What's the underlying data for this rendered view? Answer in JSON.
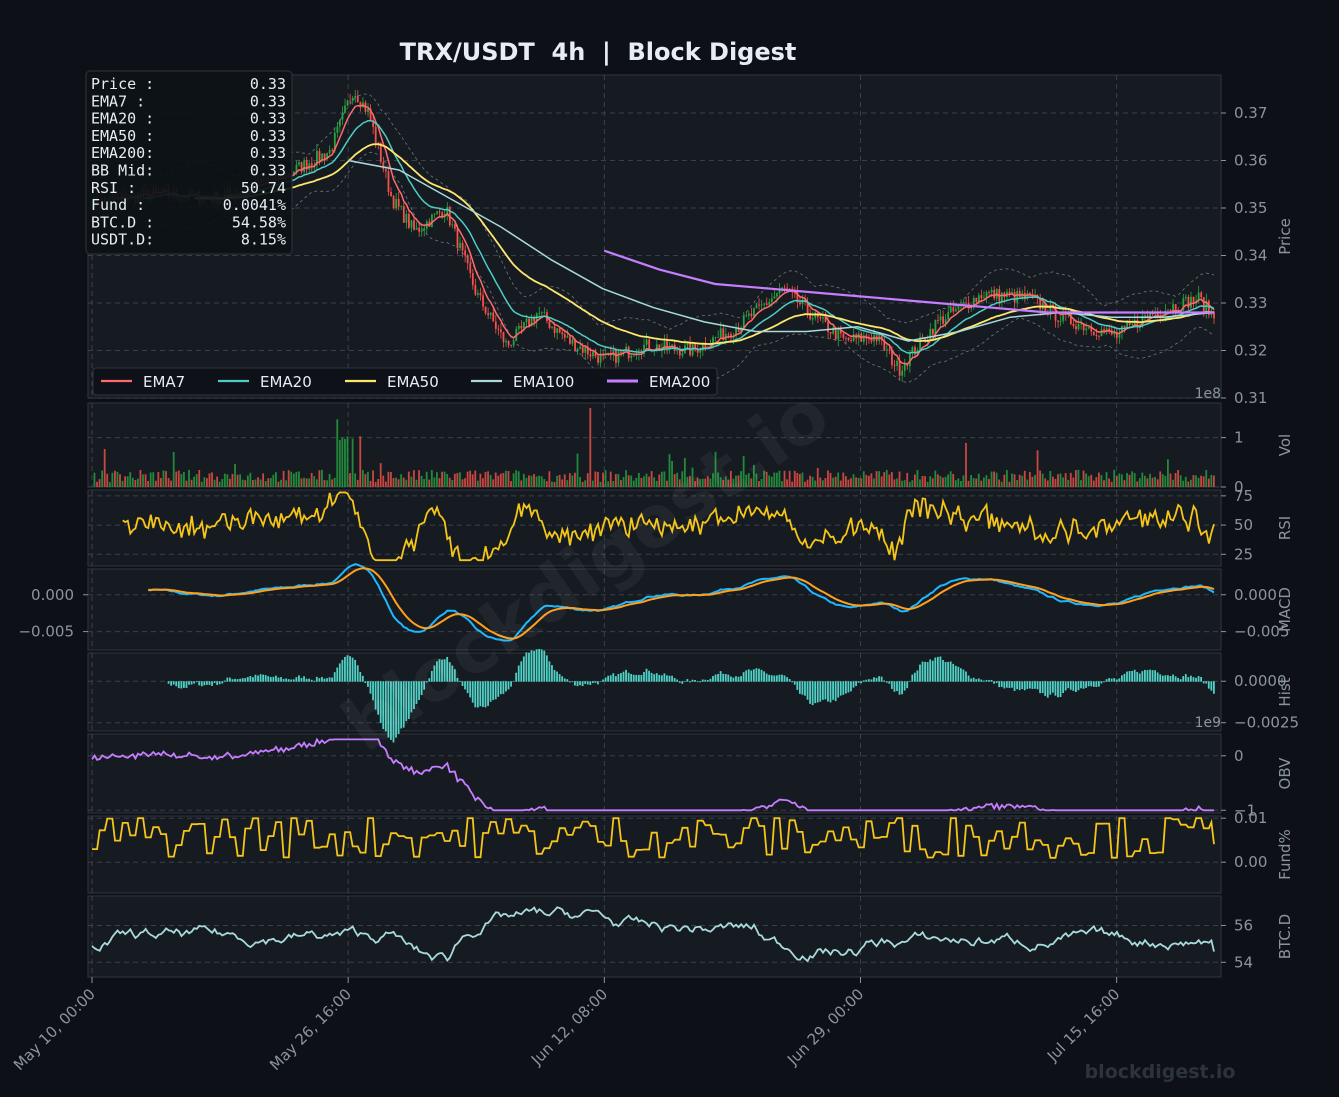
{
  "title": "TRX/USDT  4h  |  Block Digest",
  "watermark": "blockdigest.io",
  "footer_brand": "blockdigest.io",
  "colors": {
    "bg": "#0d1117",
    "panel": "#161b22",
    "grid": "#30363d",
    "text": "#e6edf3",
    "muted": "#8b949e",
    "up": "#26a641",
    "down": "#f85149",
    "ema7": "#ff6b6b",
    "ema20": "#4ecdc4",
    "ema50": "#ffe66d",
    "ema100": "#a8dadc",
    "ema200": "#c77dff",
    "rsi": "#f5c518",
    "macd": "#1fb8ff",
    "signal": "#ff9f1c",
    "hist": "#4fd1c5",
    "obv": "#c77dff",
    "funding": "#f5c518",
    "btcd": "#a8dadc"
  },
  "info_box": [
    {
      "label": "Price :",
      "value": "0.33"
    },
    {
      "label": "EMA7  :",
      "value": "0.33"
    },
    {
      "label": "EMA20 :",
      "value": "0.33"
    },
    {
      "label": "EMA50 :",
      "value": "0.33"
    },
    {
      "label": "EMA200:",
      "value": "0.33"
    },
    {
      "label": "BB Mid:",
      "value": "0.33"
    },
    {
      "label": "RSI   :",
      "value": "50.74"
    },
    {
      "label": "Fund  :",
      "value": "0.0041%"
    },
    {
      "label": "BTC.D :",
      "value": "54.58%"
    },
    {
      "label": "USDT.D:",
      "value": "8.15%"
    }
  ],
  "legend": [
    "EMA7",
    "EMA20",
    "EMA50",
    "EMA100",
    "EMA200"
  ],
  "x_ticks": [
    "May 10, 00:00",
    "May 26, 16:00",
    "Jun 12, 08:00",
    "Jun 29, 00:00",
    "Jul 15, 16:00"
  ],
  "chart_data": [
    {
      "type": "candlestick",
      "panel": "price",
      "ylabel": "Price",
      "ylim": [
        0.31,
        0.378
      ],
      "yticks": [
        "0.37",
        "0.36",
        "0.35",
        "0.34",
        "0.33",
        "0.32",
        "0.31"
      ],
      "xlim": [
        "May 10, 00:00",
        "Jul 22, 00:00"
      ],
      "close_path": [
        [
          "May 10, 00:00",
          0.351
        ],
        [
          "May 14, 00:00",
          0.353
        ],
        [
          "May 18, 00:00",
          0.352
        ],
        [
          "May 22, 00:00",
          0.356
        ],
        [
          "May 25, 12:00",
          0.362
        ],
        [
          "May 27, 00:00",
          0.375
        ],
        [
          "May 28, 00:00",
          0.37
        ],
        [
          "May 29, 12:00",
          0.352
        ],
        [
          "May 31, 00:00",
          0.345
        ],
        [
          "Jun 2, 00:00",
          0.35
        ],
        [
          "Jun 4, 00:00",
          0.332
        ],
        [
          "Jun 6, 00:00",
          0.321
        ],
        [
          "Jun 8, 00:00",
          0.328
        ],
        [
          "Jun 10, 00:00",
          0.322
        ],
        [
          "Jun 12, 08:00",
          0.318
        ],
        [
          "Jun 15, 00:00",
          0.321
        ],
        [
          "Jun 18, 00:00",
          0.32
        ],
        [
          "Jun 21, 00:00",
          0.325
        ],
        [
          "Jun 24, 00:00",
          0.333
        ],
        [
          "Jun 26, 00:00",
          0.327
        ],
        [
          "Jun 28, 00:00",
          0.322
        ],
        [
          "Jun 30, 00:00",
          0.323
        ],
        [
          "Jul 1, 12:00",
          0.316
        ],
        [
          "Jul 4, 00:00",
          0.326
        ],
        [
          "Jul 7, 00:00",
          0.332
        ],
        [
          "Jul 10, 00:00",
          0.331
        ],
        [
          "Jul 12, 00:00",
          0.327
        ],
        [
          "Jul 15, 16:00",
          0.323
        ],
        [
          "Jul 18, 00:00",
          0.328
        ],
        [
          "Jul 21, 00:00",
          0.331
        ],
        [
          "Jul 22, 00:00",
          0.327
        ]
      ],
      "series": [
        {
          "name": "EMA200",
          "start": "Jun 12, 08:00",
          "values": [
            0.341,
            0.337,
            0.334,
            0.333,
            0.332,
            0.331,
            0.33,
            0.329,
            0.328,
            0.328,
            0.328,
            0.328
          ]
        },
        {
          "name": "EMA100",
          "start": "May 26, 16:00",
          "values": [
            0.36,
            0.358,
            0.352,
            0.346,
            0.339,
            0.333,
            0.329,
            0.326,
            0.324,
            0.324,
            0.325,
            0.322,
            0.324,
            0.327,
            0.328,
            0.327,
            0.327,
            0.328
          ]
        }
      ]
    },
    {
      "type": "bar",
      "panel": "volume",
      "ylabel": "Vol",
      "multiplier": "1e8",
      "yticks": [
        "1",
        "0"
      ],
      "ylim": [
        0,
        1.7
      ]
    },
    {
      "type": "line",
      "panel": "rsi",
      "ylabel": "RSI",
      "yticks": [
        "75",
        "50",
        "25"
      ],
      "ylim": [
        15,
        80
      ],
      "last": 50.74
    },
    {
      "type": "line",
      "panel": "macd",
      "ylabel": "MACD",
      "yticks": [
        "0.000",
        "−0.005"
      ],
      "left_yticks": [
        "0.000",
        "−0.005"
      ],
      "ylim": [
        -0.0075,
        0.0035
      ],
      "series": [
        {
          "name": "MACD"
        },
        {
          "name": "Signal"
        }
      ]
    },
    {
      "type": "bar",
      "panel": "hist",
      "ylabel": "Hist",
      "yticks": [
        "0.0000",
        "−0.0025"
      ],
      "ylim": [
        -0.003,
        0.0017
      ]
    },
    {
      "type": "line",
      "panel": "obv",
      "ylabel": "OBV",
      "multiplier": "1e9",
      "yticks": [
        "0",
        "−1"
      ],
      "ylim": [
        -1.05,
        0.4
      ]
    },
    {
      "type": "line",
      "panel": "funding",
      "ylabel": "Fund%",
      "yticks": [
        "0.01",
        "0.00"
      ],
      "ylim": [
        -0.007,
        0.0105
      ],
      "last": 0.0041
    },
    {
      "type": "line",
      "panel": "btcd",
      "ylabel": "BTC.D",
      "yticks": [
        "56",
        "54"
      ],
      "ylim": [
        53.2,
        57.6
      ],
      "last": 54.58
    }
  ]
}
